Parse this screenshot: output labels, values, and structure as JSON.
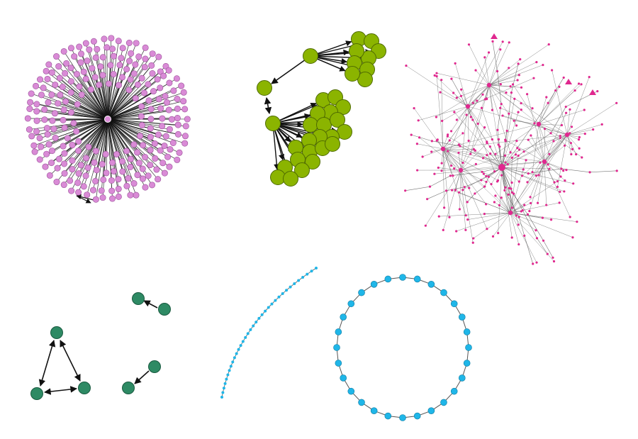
{
  "colors": {
    "background": "#ffffff",
    "edge": "#111111",
    "edge_light": "#555555",
    "star_node": "#d98bd6",
    "star_node_stroke": "#9a4f98",
    "olive_node": "#8bb400",
    "olive_node_stroke": "#4f6b00",
    "magenta_node": "#e0288f",
    "teal_node": "#2e8a64",
    "teal_node_stroke": "#1a5a40",
    "cyan_node": "#1fb6e8",
    "cyan_node_stroke": "#0e7aa0"
  },
  "graphs": [
    {
      "id": "star",
      "node_color": "star_node",
      "description_icon": "star-graph-icon"
    },
    {
      "id": "olive-clusters",
      "node_color": "olive_node",
      "description_icon": "cluster-graph-icon"
    },
    {
      "id": "magenta-scale-free",
      "node_color": "magenta_node",
      "description_icon": "scale-free-graph-icon"
    },
    {
      "id": "teal-small-components",
      "node_color": "teal_node",
      "description_icon": "components-graph-icon"
    },
    {
      "id": "cyan-path",
      "node_color": "cyan_node",
      "description_icon": "path-graph-icon"
    },
    {
      "id": "cyan-ring",
      "node_color": "cyan_node",
      "description_icon": "ring-graph-icon"
    }
  ]
}
